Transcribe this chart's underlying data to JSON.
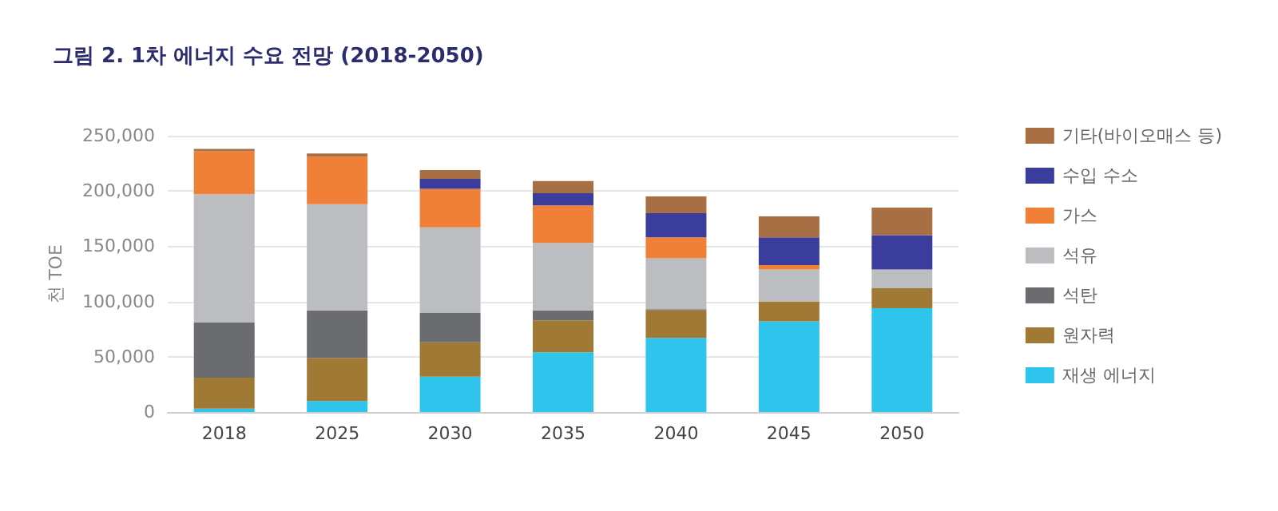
{
  "chart_data": {
    "type": "bar",
    "title": "그림 2. 1차 에너지 수요 전망 (2018-2050)",
    "ylabel": "천 TOE",
    "stacked": true,
    "categories": [
      "2018",
      "2025",
      "2030",
      "2035",
      "2040",
      "2045",
      "2050"
    ],
    "series": [
      {
        "name": "재생 에너지",
        "color": "#2ec4ec",
        "values": [
          3000,
          10000,
          32000,
          54000,
          67000,
          82000,
          94000
        ]
      },
      {
        "name": "원자력",
        "color": "#a07a34",
        "values": [
          28000,
          39000,
          31000,
          29000,
          25000,
          18000,
          18000
        ]
      },
      {
        "name": "석탄",
        "color": "#6b6c70",
        "values": [
          50000,
          43000,
          27000,
          9000,
          1000,
          0,
          0
        ]
      },
      {
        "name": "석유",
        "color": "#bcbdc0",
        "values": [
          116000,
          96000,
          77000,
          61000,
          46000,
          29000,
          17000
        ]
      },
      {
        "name": "가스",
        "color": "#f07f37",
        "values": [
          39000,
          43000,
          35000,
          34000,
          19000,
          4000,
          0
        ]
      },
      {
        "name": "수입 수소",
        "color": "#3b3d9c",
        "values": [
          0,
          0,
          9000,
          11000,
          22000,
          25000,
          31000
        ]
      },
      {
        "name": "기타(바이오매스 등)",
        "color": "#a86f45",
        "values": [
          2000,
          3000,
          8000,
          11000,
          15000,
          19000,
          25000
        ]
      }
    ],
    "ylim": [
      0,
      250000
    ],
    "yticks": [
      0,
      {
        "value": 50000,
        "label": "50,000"
      },
      {
        "value": 100000,
        "label": "100,000"
      },
      {
        "value": 150000,
        "label": "150,000"
      },
      {
        "value": 200000,
        "label": "200,000"
      },
      {
        "value": 250000,
        "label": "250,000"
      }
    ],
    "grid": "y",
    "legend": "right"
  }
}
